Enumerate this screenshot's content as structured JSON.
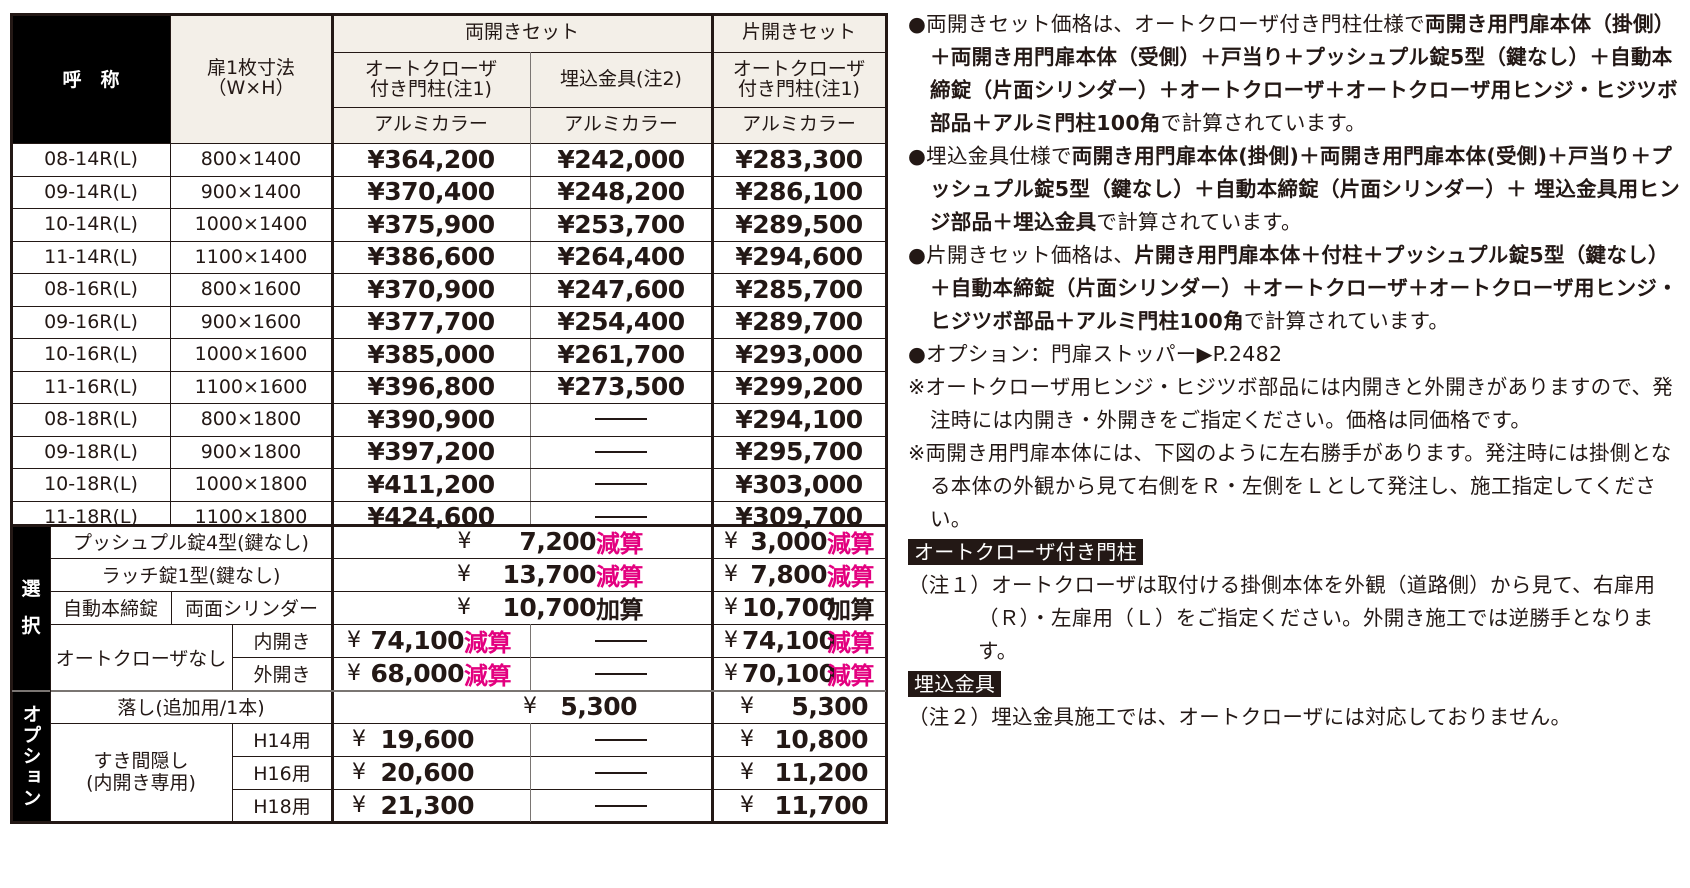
{
  "table": {
    "headers": {
      "name": "呼　称",
      "size_line1": "扉1枚寸法",
      "size_line2": "（W×H）",
      "double_set": "両開きセット",
      "single_set": "片開きセット",
      "auto_closer_line1": "オートクローザ",
      "auto_closer_line2": "付き門柱(注1)",
      "embedded": "埋込金具(注2)",
      "color": "アルミカラー"
    },
    "rows": [
      {
        "code": "08-14R(L)",
        "size": "800×1400",
        "double_auto": "¥364,200",
        "double_embed": "¥242,000",
        "single_auto": "¥283,300"
      },
      {
        "code": "09-14R(L)",
        "size": "900×1400",
        "double_auto": "¥370,400",
        "double_embed": "¥248,200",
        "single_auto": "¥286,100"
      },
      {
        "code": "10-14R(L)",
        "size": "1000×1400",
        "double_auto": "¥375,900",
        "double_embed": "¥253,700",
        "single_auto": "¥289,500"
      },
      {
        "code": "11-14R(L)",
        "size": "1100×1400",
        "double_auto": "¥386,600",
        "double_embed": "¥264,400",
        "single_auto": "¥294,600"
      },
      {
        "code": "08-16R(L)",
        "size": "800×1600",
        "double_auto": "¥370,900",
        "double_embed": "¥247,600",
        "single_auto": "¥285,700"
      },
      {
        "code": "09-16R(L)",
        "size": "900×1600",
        "double_auto": "¥377,700",
        "double_embed": "¥254,400",
        "single_auto": "¥289,700"
      },
      {
        "code": "10-16R(L)",
        "size": "1000×1600",
        "double_auto": "¥385,000",
        "double_embed": "¥261,700",
        "single_auto": "¥293,000"
      },
      {
        "code": "11-16R(L)",
        "size": "1100×1600",
        "double_auto": "¥396,800",
        "double_embed": "¥273,500",
        "single_auto": "¥299,200"
      },
      {
        "code": "08-18R(L)",
        "size": "800×1800",
        "double_auto": "¥390,900",
        "double_embed": "—",
        "single_auto": "¥294,100"
      },
      {
        "code": "09-18R(L)",
        "size": "900×1800",
        "double_auto": "¥397,200",
        "double_embed": "—",
        "single_auto": "¥295,700"
      },
      {
        "code": "10-18R(L)",
        "size": "1000×1800",
        "double_auto": "¥411,200",
        "double_embed": "—",
        "single_auto": "¥303,000"
      },
      {
        "code": "11-18R(L)",
        "size": "1100×1800",
        "double_auto": "¥424,600",
        "double_embed": "—",
        "single_auto": "¥309,700"
      }
    ],
    "selection": {
      "label_top": "選",
      "label_bottom": "択",
      "push_pull": {
        "label": "プッシュプル錠4型(鍵なし)",
        "double_yen": "¥",
        "double_amount": "7,200",
        "double_suffix": "減算",
        "single_yen": "¥",
        "single_amount": "3,000",
        "single_suffix": "減算"
      },
      "latch": {
        "label": "ラッチ錠1型(鍵なし)",
        "double_yen": "¥",
        "double_amount": "13,700",
        "double_suffix": "減算",
        "single_yen": "¥",
        "single_amount": "7,800",
        "single_suffix": "減算"
      },
      "auto_lock": {
        "label": "自動本締錠",
        "sub_label": "両面シリンダー",
        "double_yen": "¥",
        "double_amount": "10,700",
        "double_suffix": "加算",
        "single_yen": "¥",
        "single_amount": "10,700",
        "single_suffix": "加算"
      },
      "no_closer": {
        "label": "オートクローザなし",
        "inward": {
          "label": "内開き",
          "double_yen": "¥",
          "double_amount": "74,100",
          "double_suffix": "減算",
          "embed": "—",
          "single_yen": "¥",
          "single_amount": "74,100",
          "single_suffix": "減算"
        },
        "outward": {
          "label": "外開き",
          "double_yen": "¥",
          "double_amount": "68,000",
          "double_suffix": "減算",
          "embed": "—",
          "single_yen": "¥",
          "single_amount": "70,100",
          "single_suffix": "減算"
        }
      }
    },
    "options": {
      "label": "オプション",
      "drop_rod": {
        "label": "落し(追加用/1本)",
        "double_yen": "¥",
        "double_amount": "5,300",
        "single_yen": "¥",
        "single_amount": "5,300"
      },
      "gap_cover": {
        "label_line1": "すき間隠し",
        "label_line2": "(内開き専用)",
        "rows": [
          {
            "label": "H14用",
            "double_yen": "¥",
            "double_amount": "19,600",
            "embed": "—",
            "single_yen": "¥",
            "single_amount": "10,800"
          },
          {
            "label": "H16用",
            "double_yen": "¥",
            "double_amount": "20,600",
            "embed": "—",
            "single_yen": "¥",
            "single_amount": "11,200"
          },
          {
            "label": "H18用",
            "double_yen": "¥",
            "double_amount": "21,300",
            "embed": "—",
            "single_yen": "¥",
            "single_amount": "11,700"
          }
        ]
      }
    },
    "colors": {
      "header_bg": "#f3efe8",
      "accent_pink": "#e3007f",
      "ink": "#231815"
    }
  },
  "notes": {
    "n1_a": "●両開きセット価格は、オートクローザ付き門柱仕様で",
    "n1_b": "両開き用門扉本体（掛側）＋両開き用門扉本体（受側）＋戸当り＋プッシュプル錠5型（鍵なし）＋自動本締錠（片面シリンダー）＋オートクローザ＋オートクローザ用ヒンジ・ヒジツボ部品＋アルミ門柱100角",
    "n1_c": "で計算されています。",
    "n2_a": "●埋込金具仕様で",
    "n2_b": "両開き用門扉本体(掛側)＋両開き用門扉本体(受側)＋戸当り＋プッシュプル錠5型（鍵なし）＋自動本締錠（片面シリンダー）＋ 埋込金具用ヒンジ部品＋埋込金具",
    "n2_c": "で計算されています。",
    "n3_a": "●片開きセット価格は、",
    "n3_b": "片開き用門扉本体＋付柱＋プッシュプル錠5型（鍵なし）＋自動本締錠（片面シリンダー）＋オートクローザ＋オートクローザ用ヒンジ・ヒジツボ部品＋アルミ門柱100角",
    "n3_c": "で計算されています。",
    "n4": "●オプション：門扉ストッパー▶P.2482",
    "n5": "※オートクローザ用ヒンジ・ヒジツボ部品には内開きと外開きがありますので、発注時には内開き・外開きをご指定ください。価格は同価格です。",
    "n6": "※両開き用門扉本体には、下図のように左右勝手があります。発注時には掛側となる本体の外観から見て右側をＲ・左側をＬとして発注し、施工指定してください。",
    "tag1": "オートクローザ付き門柱",
    "note1": "（注１）オートクローザは取付ける掛側本体を外観（道路側）から見て、右扉用（Ｒ）・左扉用（Ｌ）をご指定ください。外開き施工では逆勝手となります。",
    "tag2": "埋込金具",
    "note2": "（注２）埋込金具施工では、オートクローザには対応しておりません。"
  }
}
